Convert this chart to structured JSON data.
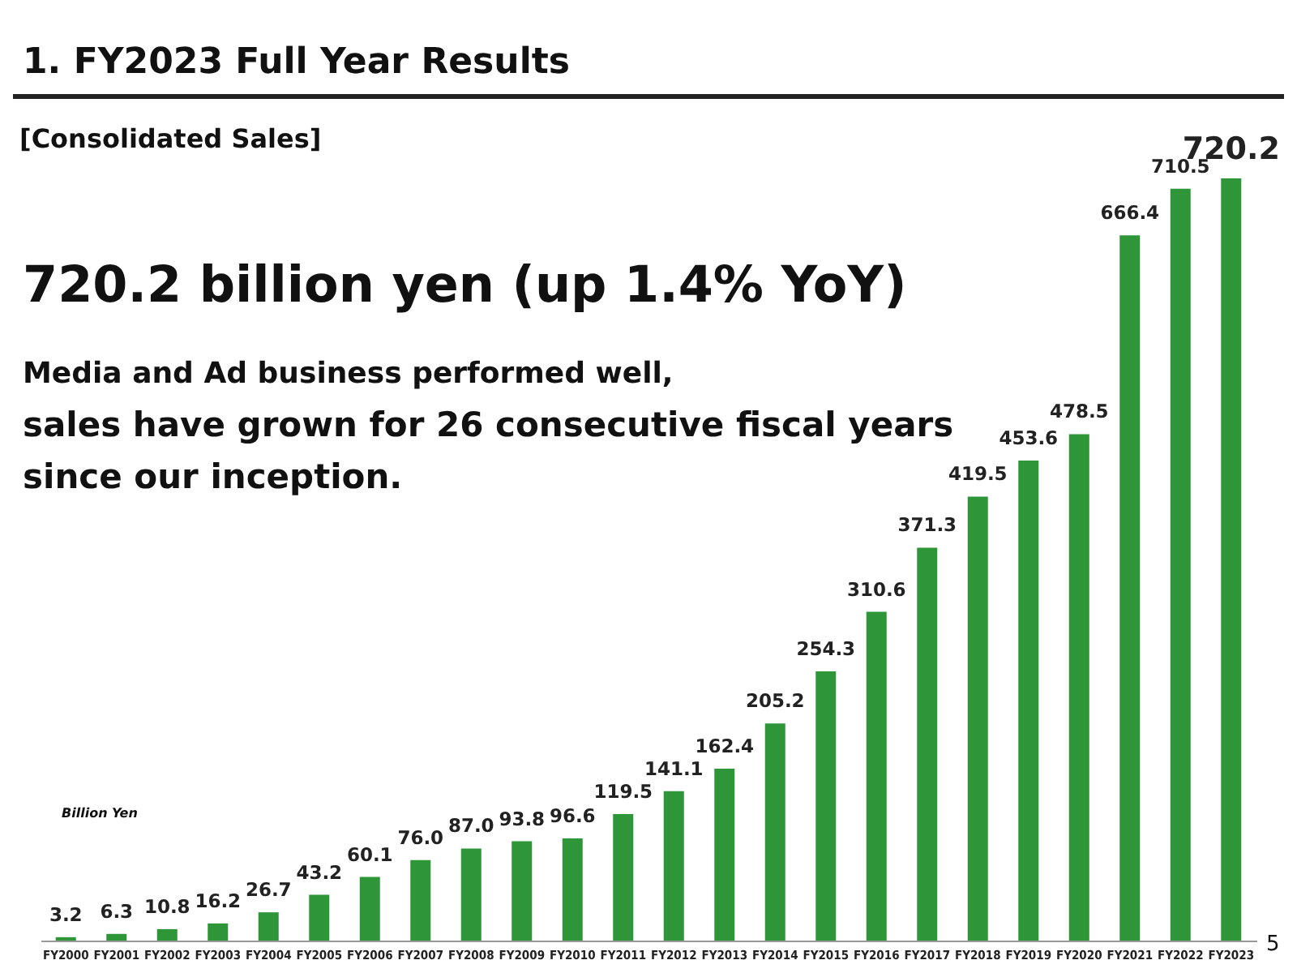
{
  "chart_data": {
    "type": "bar",
    "title": "1. FY2023 Full Year Results",
    "subtitle": "[Consolidated Sales]",
    "ylabel": "Billion Yen",
    "annotations": [
      "720.2 billion yen (up 1.4% YoY)",
      "Media and Ad business performed well,",
      "sales have grown for 26 consecutive fiscal years",
      "since our inception.",
      "5"
    ],
    "categories": [
      "FY2000",
      "FY2001",
      "FY2002",
      "FY2003",
      "FY2004",
      "FY2005",
      "FY2006",
      "FY2007",
      "FY2008",
      "FY2009",
      "FY2010",
      "FY2011",
      "FY2012",
      "FY2013",
      "FY2014",
      "FY2015",
      "FY2016",
      "FY2017",
      "FY2018",
      "FY2019",
      "FY2020",
      "FY2021",
      "FY2022",
      "FY2023"
    ],
    "values": [
      3.2,
      6.3,
      10.8,
      16.2,
      26.7,
      43.2,
      60.1,
      76.0,
      87.0,
      93.8,
      96.6,
      119.5,
      141.1,
      162.4,
      205.2,
      254.3,
      310.6,
      371.3,
      419.5,
      453.6,
      478.5,
      666.4,
      710.5,
      720.2
    ],
    "value_labels": [
      "3.2",
      "6.3",
      "10.8",
      "16.2",
      "26.7",
      "43.2",
      "60.1",
      "76.0",
      "87.0",
      "93.8",
      "96.6",
      "119.5",
      "141.1",
      "162.4",
      "205.2",
      "254.3",
      "310.6",
      "371.3",
      "419.5",
      "453.6",
      "478.5",
      "666.4",
      "710.5",
      "720.2"
    ],
    "color": "#2e9639"
  }
}
